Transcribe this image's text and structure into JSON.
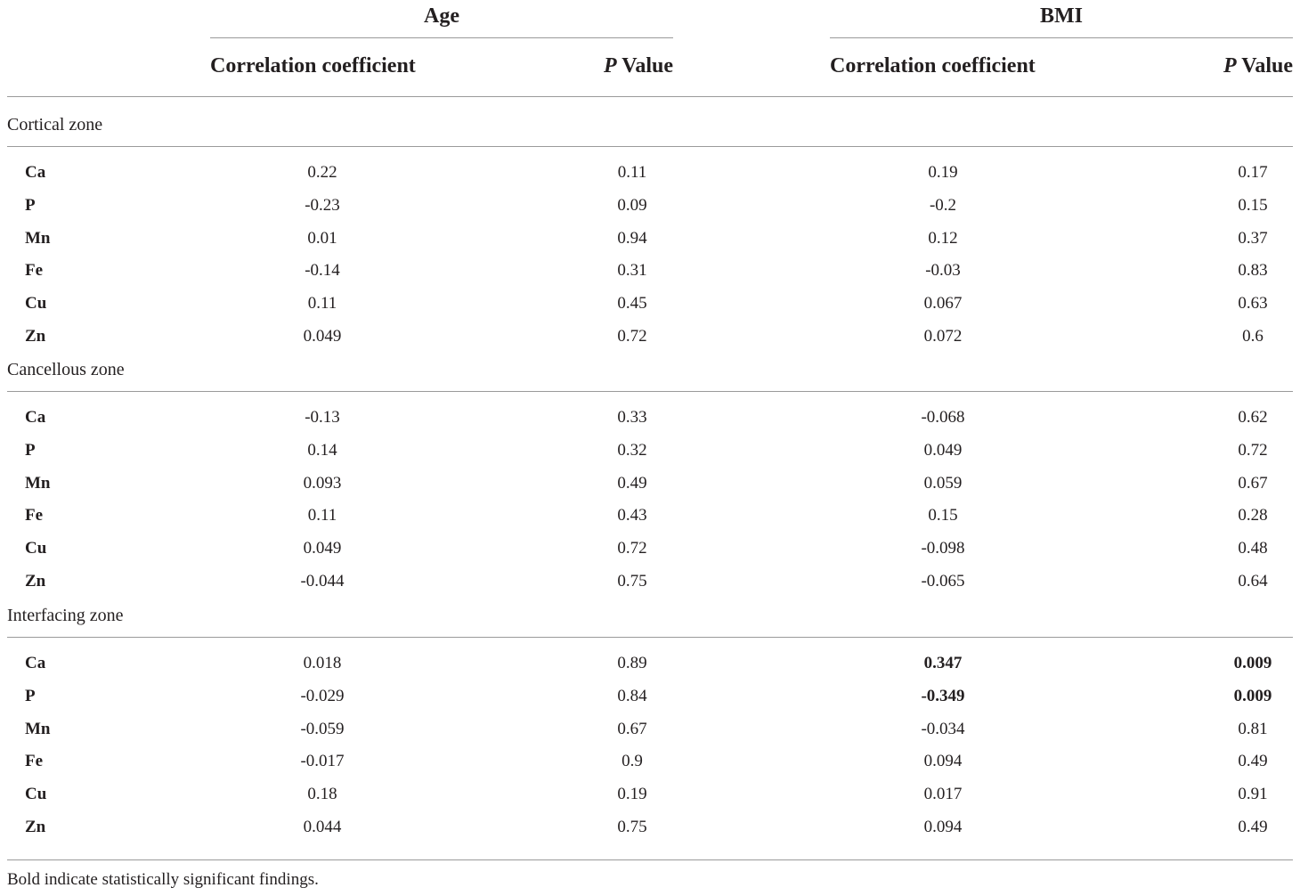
{
  "header": {
    "groups": [
      "Age",
      "BMI"
    ],
    "columns": {
      "corr": "Correlation coefficient",
      "p_italic": "P",
      "p_rest": " Value"
    }
  },
  "sections": [
    {
      "label": "Cortical zone",
      "rows": [
        {
          "element": "Ca",
          "age_corr": "0.22",
          "age_p": "0.11",
          "bmi_corr": "0.19",
          "bmi_p": "0.17"
        },
        {
          "element": "P",
          "age_corr": "-0.23",
          "age_p": "0.09",
          "bmi_corr": "-0.2",
          "bmi_p": "0.15"
        },
        {
          "element": "Mn",
          "age_corr": "0.01",
          "age_p": "0.94",
          "bmi_corr": "0.12",
          "bmi_p": "0.37"
        },
        {
          "element": "Fe",
          "age_corr": "-0.14",
          "age_p": "0.31",
          "bmi_corr": "-0.03",
          "bmi_p": "0.83"
        },
        {
          "element": "Cu",
          "age_corr": "0.11",
          "age_p": "0.45",
          "bmi_corr": "0.067",
          "bmi_p": "0.63"
        },
        {
          "element": "Zn",
          "age_corr": "0.049",
          "age_p": "0.72",
          "bmi_corr": "0.072",
          "bmi_p": "0.6"
        }
      ]
    },
    {
      "label": "Cancellous zone",
      "rows": [
        {
          "element": "Ca",
          "age_corr": "-0.13",
          "age_p": "0.33",
          "bmi_corr": "-0.068",
          "bmi_p": "0.62"
        },
        {
          "element": "P",
          "age_corr": "0.14",
          "age_p": "0.32",
          "bmi_corr": "0.049",
          "bmi_p": "0.72"
        },
        {
          "element": "Mn",
          "age_corr": "0.093",
          "age_p": "0.49",
          "bmi_corr": "0.059",
          "bmi_p": "0.67"
        },
        {
          "element": "Fe",
          "age_corr": "0.11",
          "age_p": "0.43",
          "bmi_corr": "0.15",
          "bmi_p": "0.28"
        },
        {
          "element": "Cu",
          "age_corr": "0.049",
          "age_p": "0.72",
          "bmi_corr": "-0.098",
          "bmi_p": "0.48"
        },
        {
          "element": "Zn",
          "age_corr": "-0.044",
          "age_p": "0.75",
          "bmi_corr": "-0.065",
          "bmi_p": "0.64"
        }
      ]
    },
    {
      "label": "Interfacing zone",
      "rows": [
        {
          "element": "Ca",
          "age_corr": "0.018",
          "age_p": "0.89",
          "bmi_corr": "0.347",
          "bmi_p": "0.009",
          "bmi_bold": true
        },
        {
          "element": "P",
          "age_corr": "-0.029",
          "age_p": "0.84",
          "bmi_corr": "-0.349",
          "bmi_p": "0.009",
          "bmi_bold": true
        },
        {
          "element": "Mn",
          "age_corr": "-0.059",
          "age_p": "0.67",
          "bmi_corr": "-0.034",
          "bmi_p": "0.81"
        },
        {
          "element": "Fe",
          "age_corr": "-0.017",
          "age_p": "0.9",
          "bmi_corr": "0.094",
          "bmi_p": "0.49"
        },
        {
          "element": "Cu",
          "age_corr": "0.18",
          "age_p": "0.19",
          "bmi_corr": "0.017",
          "bmi_p": "0.91"
        },
        {
          "element": "Zn",
          "age_corr": "0.044",
          "age_p": "0.75",
          "bmi_corr": "0.094",
          "bmi_p": "0.49"
        }
      ]
    }
  ],
  "footnote": "Bold indicate statistically significant findings."
}
